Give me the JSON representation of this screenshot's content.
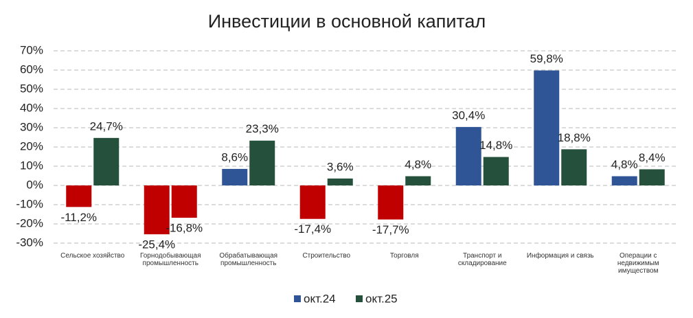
{
  "chart_data": {
    "type": "bar",
    "title": "Инвестиции в основной капитал",
    "categories": [
      "Сельское хозяйство",
      "Горнодобывающая промышленность",
      "Обрабатывающая промышленность",
      "Строительство",
      "Торговля",
      "Транспорт и складирование",
      "Информация и связь",
      "Операции с недвижимым имуществом"
    ],
    "series": [
      {
        "name": "окт.24",
        "color": "#2f5597",
        "values": [
          -11.2,
          -25.4,
          8.6,
          -17.4,
          -17.7,
          30.4,
          59.8,
          4.8
        ],
        "value_labels": [
          "-11,2%",
          "-25,4%",
          "8,6%",
          "-17,4%",
          "-17,7%",
          "30,4%",
          "59,8%",
          "4,8%"
        ]
      },
      {
        "name": "окт.25",
        "color": "#25503c",
        "values": [
          24.7,
          -16.8,
          23.3,
          3.6,
          4.8,
          14.8,
          18.8,
          8.4
        ],
        "value_labels": [
          "24,7%",
          "-16,8%",
          "23,3%",
          "3,6%",
          "4,8%",
          "14,8%",
          "18,8%",
          "8,4%"
        ]
      }
    ],
    "negative_color": "#c00000",
    "ylim": [
      -30,
      70
    ],
    "yticks": [
      {
        "value": -30,
        "label": "-30%"
      },
      {
        "value": -20,
        "label": "-20%"
      },
      {
        "value": -10,
        "label": "-10%"
      },
      {
        "value": 0,
        "label": "0%"
      },
      {
        "value": 10,
        "label": "10%"
      },
      {
        "value": 20,
        "label": "20%"
      },
      {
        "value": 30,
        "label": "30%"
      },
      {
        "value": 40,
        "label": "40%"
      },
      {
        "value": 50,
        "label": "50%"
      },
      {
        "value": 60,
        "label": "60%"
      },
      {
        "value": 70,
        "label": "70%"
      }
    ],
    "grid": true,
    "legend": "bottom"
  }
}
